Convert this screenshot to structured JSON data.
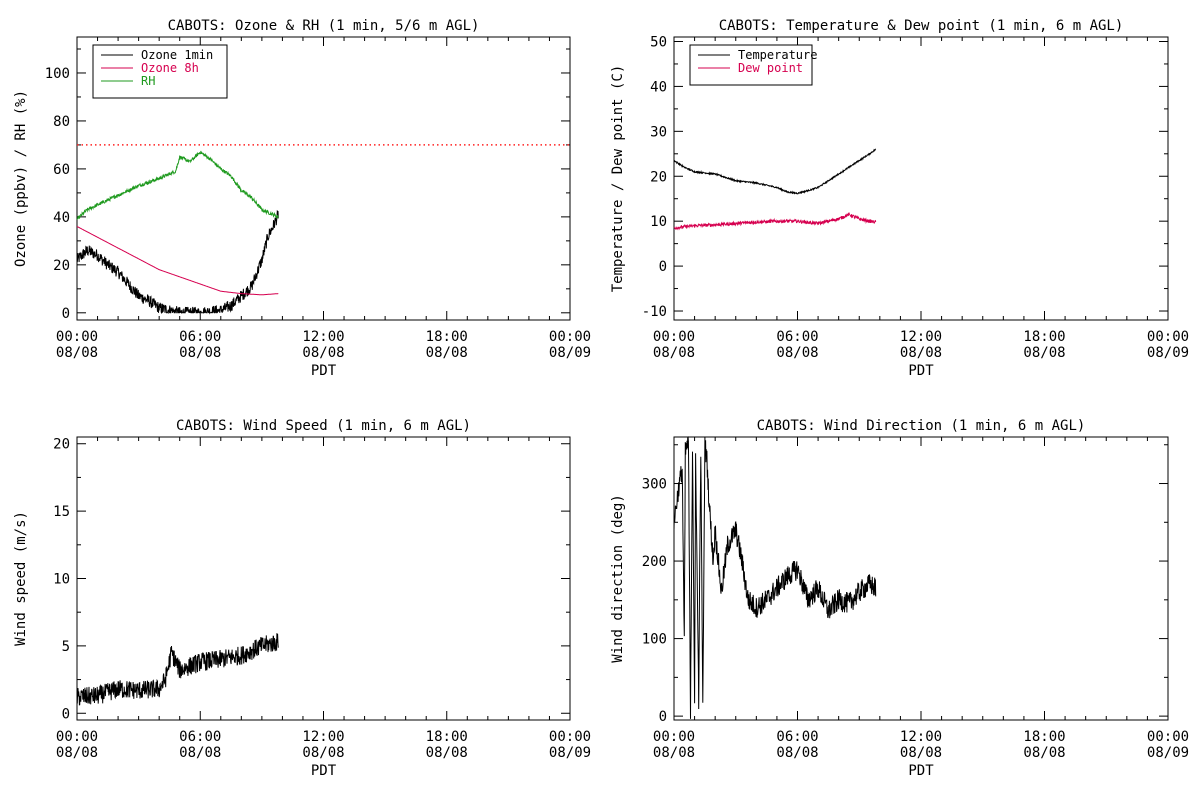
{
  "colors": {
    "black": "#000000",
    "crimson": "#d6004f",
    "green": "#1f9a1f",
    "red": "#ff2020"
  },
  "chart_data": [
    {
      "id": "ozone",
      "type": "line",
      "title": "CABOTS: Ozone & RH (1 min, 5/6 m AGL)",
      "xlabel": "PDT",
      "ylabel": "Ozone (ppbv) / RH (%)",
      "xlim": [
        0,
        24
      ],
      "ylim": [
        -3,
        115
      ],
      "yticks": [
        0,
        20,
        40,
        60,
        80,
        100
      ],
      "xticks": [
        0,
        6,
        12,
        18,
        24
      ],
      "xtick_labels": [
        [
          "00:00",
          "08/08"
        ],
        [
          "06:00",
          "08/08"
        ],
        [
          "12:00",
          "08/08"
        ],
        [
          "18:00",
          "08/08"
        ],
        [
          "00:00",
          "08/09"
        ]
      ],
      "reference_line": {
        "y": 70,
        "color": "#ff2020",
        "style": "dotted"
      },
      "legend": "top-left",
      "series": [
        {
          "name": "Ozone 1min",
          "color": "#000000",
          "noise": 2.5,
          "x": [
            0,
            0.5,
            1.0,
            1.5,
            2.0,
            2.5,
            3.0,
            3.5,
            4.0,
            4.5,
            5.0,
            6.0,
            7.0,
            7.5,
            8.0,
            8.5,
            9.0,
            9.3,
            9.6,
            9.8
          ],
          "y": [
            22,
            26,
            24,
            20,
            17,
            12,
            7,
            5,
            2,
            1,
            0,
            0,
            1,
            3,
            7,
            11,
            22,
            32,
            37,
            41
          ]
        },
        {
          "name": "Ozone 8h",
          "color": "#d6004f",
          "noise": 0,
          "x": [
            0,
            2,
            4,
            6,
            7,
            8,
            9,
            9.8
          ],
          "y": [
            36,
            27,
            18,
            12,
            9,
            8,
            7.5,
            8
          ]
        },
        {
          "name": "RH",
          "color": "#1f9a1f",
          "noise": 0.7,
          "x": [
            0,
            0.5,
            1.0,
            2.0,
            3.0,
            4.0,
            4.8,
            5.0,
            5.5,
            6.0,
            6.5,
            7.0,
            7.5,
            8.0,
            8.5,
            9.0,
            9.8
          ],
          "y": [
            39,
            43,
            45,
            49,
            53,
            56,
            59,
            65,
            63,
            67,
            64,
            60,
            57,
            51,
            48,
            43,
            40
          ]
        }
      ]
    },
    {
      "id": "temperature",
      "type": "line",
      "title": "CABOTS: Temperature & Dew point (1 min, 6 m AGL)",
      "xlabel": "PDT",
      "ylabel": "Temperature / Dew point (C)",
      "xlim": [
        0,
        24
      ],
      "ylim": [
        -12,
        51
      ],
      "yticks": [
        -10,
        0,
        10,
        20,
        30,
        40,
        50
      ],
      "xticks": [
        0,
        6,
        12,
        18,
        24
      ],
      "xtick_labels": [
        [
          "00:00",
          "08/08"
        ],
        [
          "06:00",
          "08/08"
        ],
        [
          "12:00",
          "08/08"
        ],
        [
          "18:00",
          "08/08"
        ],
        [
          "00:00",
          "08/09"
        ]
      ],
      "legend": "top-left",
      "series": [
        {
          "name": "Temperature",
          "color": "#000000",
          "noise": 0.15,
          "x": [
            0,
            0.5,
            1.0,
            2.0,
            3.0,
            4.0,
            5.0,
            5.5,
            6.0,
            6.5,
            7.0,
            7.5,
            8.0,
            8.5,
            9.0,
            9.5,
            9.8
          ],
          "y": [
            23.5,
            22,
            21,
            20.5,
            19,
            18.5,
            17.5,
            16.5,
            16.2,
            16.8,
            17.5,
            19,
            20.5,
            22,
            23.5,
            25,
            26
          ]
        },
        {
          "name": "Dew point",
          "color": "#d6004f",
          "noise": 0.35,
          "x": [
            0,
            1,
            2,
            3,
            4,
            5,
            6,
            7,
            8,
            8.5,
            9,
            9.5,
            9.8
          ],
          "y": [
            8.5,
            9,
            9.2,
            9.5,
            9.8,
            10,
            10,
            9.5,
            10.5,
            11.5,
            10.5,
            10,
            9.8
          ]
        }
      ]
    },
    {
      "id": "wind-speed",
      "type": "line",
      "title": "CABOTS: Wind Speed (1 min, 6 m AGL)",
      "xlabel": "PDT",
      "ylabel": "Wind speed (m/s)",
      "xlim": [
        0,
        24
      ],
      "ylim": [
        -0.5,
        20.5
      ],
      "yticks": [
        0,
        5,
        10,
        15,
        20
      ],
      "xticks": [
        0,
        6,
        12,
        18,
        24
      ],
      "xtick_labels": [
        [
          "00:00",
          "08/08"
        ],
        [
          "06:00",
          "08/08"
        ],
        [
          "12:00",
          "08/08"
        ],
        [
          "18:00",
          "08/08"
        ],
        [
          "00:00",
          "08/09"
        ]
      ],
      "series": [
        {
          "color": "#000000",
          "noise": 0.7,
          "x": [
            0,
            1,
            2,
            3,
            4,
            4.3,
            4.6,
            5,
            6,
            7,
            8,
            9,
            9.8
          ],
          "y": [
            1.2,
            1.3,
            1.8,
            1.7,
            1.8,
            2.5,
            4.5,
            3.2,
            3.8,
            4,
            4.3,
            5,
            5.3
          ]
        }
      ]
    },
    {
      "id": "wind-direction",
      "type": "line",
      "title": "CABOTS: Wind Direction (1 min, 6 m AGL)",
      "xlabel": "PDT",
      "ylabel": "Wind direction (deg)",
      "xlim": [
        0,
        24
      ],
      "ylim": [
        -5,
        360
      ],
      "yticks": [
        0,
        100,
        200,
        300
      ],
      "xticks": [
        0,
        6,
        12,
        18,
        24
      ],
      "xtick_labels": [
        [
          "00:00",
          "08/08"
        ],
        [
          "06:00",
          "08/08"
        ],
        [
          "12:00",
          "08/08"
        ],
        [
          "18:00",
          "08/08"
        ],
        [
          "00:00",
          "08/09"
        ]
      ],
      "series": [
        {
          "color": "#000000",
          "noise": 14,
          "x": [
            0,
            0.2,
            0.4,
            0.5,
            0.55,
            0.7,
            0.8,
            0.9,
            1.0,
            1.05,
            1.2,
            1.3,
            1.4,
            1.5,
            1.6,
            1.7,
            1.9,
            2.0,
            2.3,
            2.6,
            3.0,
            3.3,
            3.6,
            4.0,
            4.5,
            5.0,
            5.5,
            6.0,
            6.5,
            7.0,
            7.5,
            8.0,
            8.5,
            9.0,
            9.5,
            9.8
          ],
          "y": [
            250,
            290,
            320,
            90,
            340,
            355,
            10,
            350,
            5,
            340,
            20,
            345,
            10,
            350,
            330,
            280,
            200,
            240,
            160,
            220,
            240,
            200,
            150,
            140,
            150,
            165,
            180,
            190,
            150,
            165,
            135,
            150,
            145,
            160,
            170,
            165
          ]
        }
      ]
    }
  ]
}
